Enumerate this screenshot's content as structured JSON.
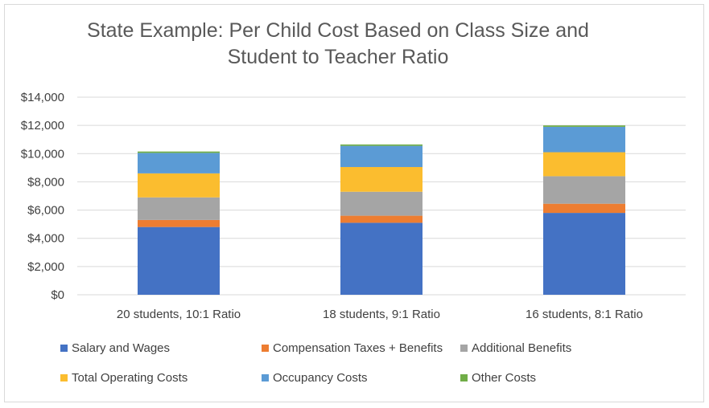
{
  "chart_data": {
    "type": "bar",
    "stacked": true,
    "title": "State Example: Per Child Cost Based on Class Size and Student to Teacher Ratio",
    "title_lines": [
      "State Example: Per Child Cost Based on Class Size and",
      "Student to Teacher Ratio"
    ],
    "xlabel": "",
    "ylabel": "",
    "ylim": [
      0,
      14000
    ],
    "y_ticks": [
      0,
      2000,
      4000,
      6000,
      8000,
      10000,
      12000,
      14000
    ],
    "y_tick_labels": [
      "$0",
      "$2,000",
      "$4,000",
      "$6,000",
      "$8,000",
      "$10,000",
      "$12,000",
      "$14,000"
    ],
    "grid": true,
    "legend_position": "bottom",
    "categories": [
      "20 students, 10:1 Ratio",
      "18 students, 9:1 Ratio",
      "16 students, 8:1 Ratio"
    ],
    "series": [
      {
        "name": "Salary and Wages",
        "color": "#4472c4",
        "values": [
          4800,
          5100,
          5800
        ]
      },
      {
        "name": "Compensation Taxes + Benefits",
        "color": "#ed7d31",
        "values": [
          500,
          500,
          650
        ]
      },
      {
        "name": "Additional Benefits",
        "color": "#a5a5a5",
        "values": [
          1600,
          1700,
          1950
        ]
      },
      {
        "name": "Total Operating Costs",
        "color": "#fbbd2f",
        "values": [
          1700,
          1750,
          1700
        ]
      },
      {
        "name": "Occupancy Costs",
        "color": "#5b9bd5",
        "values": [
          1450,
          1500,
          1800
        ]
      },
      {
        "name": "Other Costs",
        "color": "#70ad47",
        "values": [
          100,
          100,
          100
        ]
      }
    ]
  },
  "colors": {
    "gridline": "#d9d9d9",
    "text": "#404040",
    "title": "#595959",
    "frame": "#d9d9d9"
  }
}
